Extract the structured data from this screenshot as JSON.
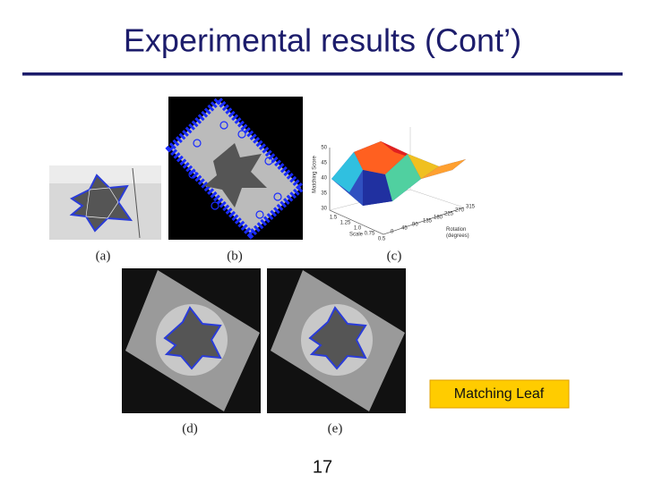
{
  "title": "Experimental results (Cont’)",
  "figures": [
    {
      "caption": "(a)"
    },
    {
      "caption": "(b)"
    },
    {
      "caption": "(c)",
      "plot": {
        "z_label": "Matching Score",
        "x_label": "Scale",
        "y_label": "Rotation\n(degrees)",
        "z_ticks": [
          "30",
          "35",
          "40",
          "45",
          "50"
        ],
        "x_ticks": [
          "1.5",
          "1.25",
          "1.0",
          "0.75",
          "0.5"
        ],
        "y_ticks": [
          "0",
          "45",
          "90",
          "135",
          "180",
          "225",
          "270",
          "315"
        ]
      }
    },
    {
      "caption": "(d)"
    },
    {
      "caption": "(e)"
    }
  ],
  "callout": "Matching Leaf",
  "page_number": "17"
}
